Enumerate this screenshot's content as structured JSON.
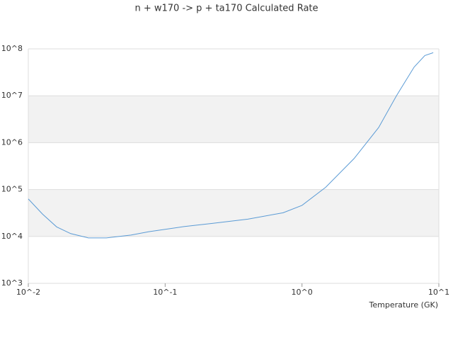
{
  "chart_data": {
    "type": "line",
    "title": "n + w170 -> p + ta170 Calculated Rate",
    "x_label": "Temperature (GK)",
    "x": [
      0.01,
      0.0127,
      0.0161,
      0.0204,
      0.0275,
      0.0372,
      0.0562,
      0.0759,
      0.137,
      0.221,
      0.402,
      0.728,
      1,
      1.49,
      2.4,
      3.63,
      4.9,
      6.6,
      7.9,
      9.1
    ],
    "series": [
      {
        "color": "#5b9bd5",
        "values": [
          63000,
          30000,
          16000,
          11500,
          9300,
          9300,
          10700,
          12600,
          16200,
          19000,
          23400,
          32000,
          46000,
          112000,
          457000,
          2100000,
          10000000,
          41000000,
          72000000,
          83000000
        ]
      }
    ],
    "xlim": [
      0.01,
      10
    ],
    "ylim": [
      1000,
      100000000
    ],
    "xscale": "log",
    "yscale": "log",
    "xticks": [
      {
        "value": 0.01,
        "label": "10^-2"
      },
      {
        "value": 0.1,
        "label": "10^-1"
      },
      {
        "value": 1,
        "label": "10^0"
      },
      {
        "value": 10,
        "label": "10^1"
      }
    ],
    "yticks": [
      {
        "value": 1000,
        "label": "10^3"
      },
      {
        "value": 10000,
        "label": "10^4"
      },
      {
        "value": 100000,
        "label": "10^5"
      },
      {
        "value": 1000000,
        "label": "10^6"
      },
      {
        "value": 10000000,
        "label": "10^7"
      },
      {
        "value": 100000000,
        "label": "10^8"
      }
    ],
    "alternating_bands": true
  }
}
